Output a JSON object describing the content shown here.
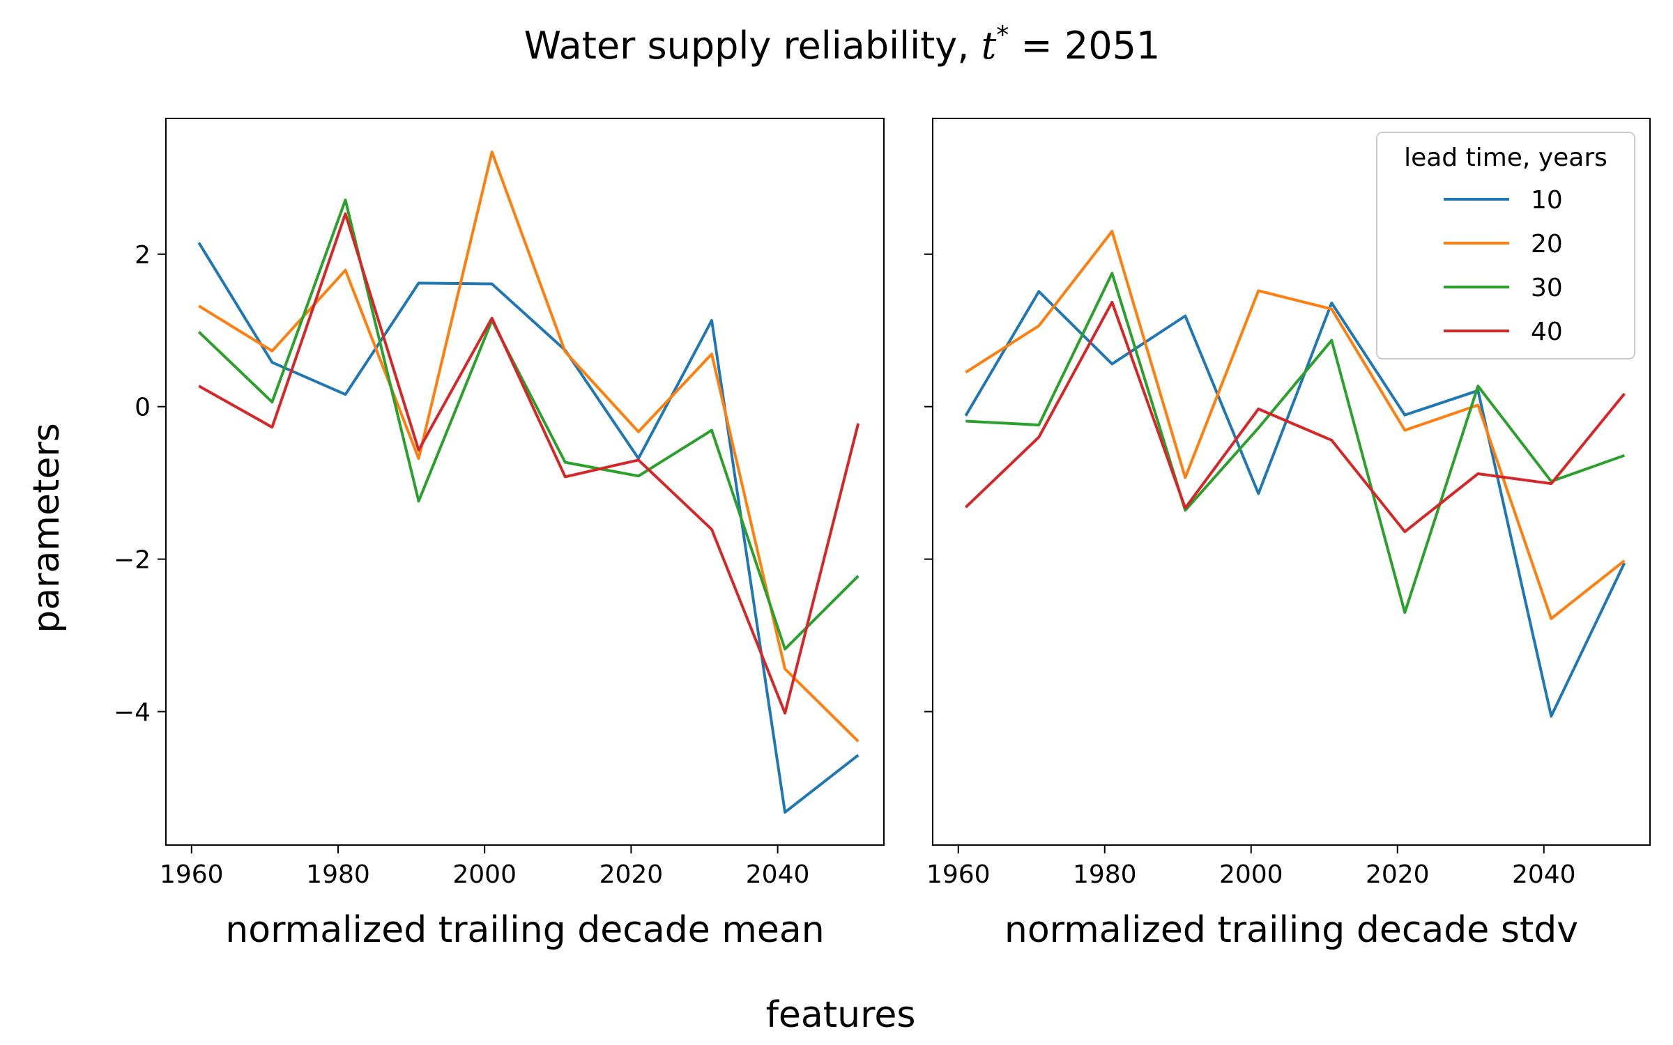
{
  "figure": {
    "title": "Water supply reliability, ",
    "title_math_symbol": "t",
    "title_math_sup": "*",
    "title_math_rest": " = 2051",
    "ylabel": "parameters",
    "supxlabel": "features"
  },
  "legend": {
    "title": "lead time, years",
    "entries": [
      "10",
      "20",
      "30",
      "40"
    ]
  },
  "colors": {
    "10": "#1f77b4",
    "20": "#ff7f0e",
    "30": "#2ca02c",
    "40": "#d62728"
  },
  "chart_data": [
    {
      "type": "line",
      "xlabel": "normalized trailing decade mean",
      "ylabel": "parameters",
      "xlim": [
        1956.5,
        2054.5
      ],
      "ylim": [
        -5.75,
        3.78
      ],
      "xticks": [
        1960,
        1980,
        2000,
        2020,
        2040
      ],
      "yticks": [
        -4,
        -2,
        0,
        2
      ],
      "x": [
        1961,
        1971,
        1981,
        1991,
        2001,
        2011,
        2021,
        2031,
        2041,
        2051
      ],
      "series": [
        {
          "name": "10",
          "values": [
            2.15,
            0.58,
            0.16,
            1.62,
            1.61,
            0.74,
            -0.68,
            1.13,
            -5.32,
            -4.57
          ]
        },
        {
          "name": "20",
          "values": [
            1.32,
            0.73,
            1.79,
            -0.68,
            3.34,
            0.72,
            -0.33,
            0.69,
            -3.44,
            -4.39
          ]
        },
        {
          "name": "30",
          "values": [
            0.98,
            0.06,
            2.71,
            -1.24,
            1.13,
            -0.73,
            -0.91,
            -0.31,
            -3.18,
            -2.22
          ]
        },
        {
          "name": "40",
          "values": [
            0.27,
            -0.27,
            2.53,
            -0.57,
            1.16,
            -0.92,
            -0.7,
            -1.61,
            -4.02,
            -0.22
          ]
        }
      ]
    },
    {
      "type": "line",
      "xlabel": "normalized trailing decade stdv",
      "ylabel": "",
      "xlim": [
        1956.5,
        2054.5
      ],
      "ylim": [
        -5.75,
        3.78
      ],
      "xticks": [
        1960,
        1980,
        2000,
        2020,
        2040
      ],
      "yticks": [
        -4,
        -2,
        0,
        2
      ],
      "legend_position": "upper right",
      "x": [
        1961,
        1971,
        1981,
        1991,
        2001,
        2011,
        2021,
        2031,
        2041,
        2051
      ],
      "series": [
        {
          "name": "10",
          "values": [
            -0.12,
            1.51,
            0.56,
            1.19,
            -1.14,
            1.36,
            -0.11,
            0.21,
            -4.06,
            -2.05
          ]
        },
        {
          "name": "20",
          "values": [
            0.45,
            1.06,
            2.3,
            -0.93,
            1.52,
            1.28,
            -0.31,
            0.02,
            -2.78,
            -2.02
          ]
        },
        {
          "name": "30",
          "values": [
            -0.19,
            -0.24,
            1.75,
            -1.36,
            -0.28,
            0.87,
            -2.7,
            0.27,
            -0.98,
            -0.64
          ]
        },
        {
          "name": "40",
          "values": [
            -1.32,
            -0.4,
            1.37,
            -1.33,
            -0.03,
            -0.44,
            -1.64,
            -0.88,
            -1.01,
            0.17
          ]
        }
      ]
    }
  ]
}
